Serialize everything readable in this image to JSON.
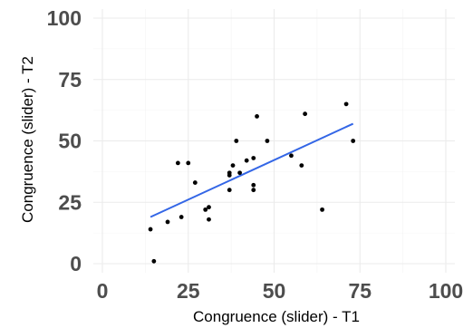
{
  "chart_data": {
    "type": "scatter",
    "title": "",
    "xlabel": "Congruence (slider) - T1",
    "ylabel": "Congruence (slider) - T2",
    "xlim": [
      0,
      100
    ],
    "ylim": [
      0,
      100
    ],
    "xticks": [
      "0",
      "25",
      "50",
      "75",
      "100"
    ],
    "yticks": [
      "0",
      "25",
      "50",
      "75",
      "100"
    ],
    "grid": true,
    "legend": "none",
    "point_color": "#000000",
    "line_color": "#3366e6",
    "points": [
      {
        "x": 14,
        "y": 14
      },
      {
        "x": 15,
        "y": 1
      },
      {
        "x": 19,
        "y": 17
      },
      {
        "x": 22,
        "y": 41
      },
      {
        "x": 23,
        "y": 19
      },
      {
        "x": 25,
        "y": 41
      },
      {
        "x": 27,
        "y": 33
      },
      {
        "x": 30,
        "y": 22
      },
      {
        "x": 31,
        "y": 23
      },
      {
        "x": 31,
        "y": 18
      },
      {
        "x": 37,
        "y": 30
      },
      {
        "x": 37,
        "y": 36
      },
      {
        "x": 37,
        "y": 37
      },
      {
        "x": 38,
        "y": 40
      },
      {
        "x": 39,
        "y": 50
      },
      {
        "x": 40,
        "y": 37
      },
      {
        "x": 42,
        "y": 42
      },
      {
        "x": 44,
        "y": 43
      },
      {
        "x": 44,
        "y": 32
      },
      {
        "x": 44,
        "y": 30
      },
      {
        "x": 45,
        "y": 60
      },
      {
        "x": 48,
        "y": 50
      },
      {
        "x": 55,
        "y": 44
      },
      {
        "x": 58,
        "y": 40
      },
      {
        "x": 59,
        "y": 61
      },
      {
        "x": 64,
        "y": 22
      },
      {
        "x": 71,
        "y": 65
      },
      {
        "x": 73,
        "y": 50
      }
    ],
    "fit_line": {
      "x": [
        14,
        73
      ],
      "y": [
        19,
        57
      ]
    }
  }
}
